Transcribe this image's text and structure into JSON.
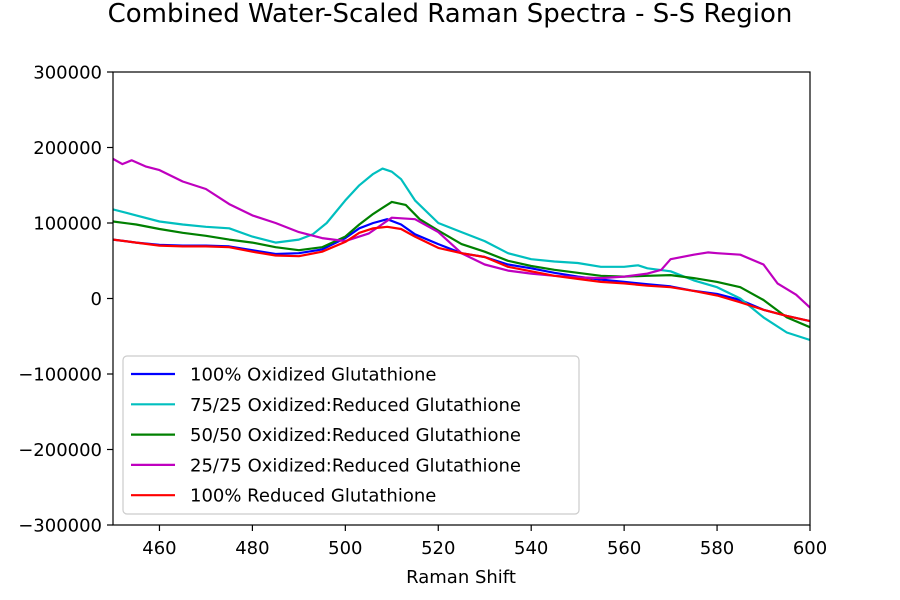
{
  "chart_data": {
    "type": "line",
    "title": "Combined Water-Scaled Raman Spectra - S-S Region",
    "xlabel": "Raman Shift",
    "ylabel": "",
    "xlim": [
      450,
      600
    ],
    "ylim": [
      -300000,
      300000
    ],
    "xticks": [
      460,
      480,
      500,
      520,
      540,
      560,
      580,
      600
    ],
    "yticks": [
      -300000,
      -200000,
      -100000,
      0,
      100000,
      200000,
      300000
    ],
    "ytick_labels": [
      "−300000",
      "−200000",
      "−100000",
      "0",
      "100000",
      "200000",
      "300000"
    ],
    "grid": false,
    "legend_position": "lower-left",
    "series": [
      {
        "name": "100% Oxidized Glutathione",
        "color": "#0000ff",
        "x": [
          450,
          455,
          460,
          465,
          470,
          475,
          480,
          485,
          490,
          495,
          500,
          503,
          506,
          509,
          512,
          515,
          520,
          525,
          530,
          535,
          540,
          545,
          550,
          555,
          560,
          565,
          570,
          575,
          580,
          585,
          590,
          595,
          600
        ],
        "y": [
          78000,
          74000,
          71000,
          70000,
          70000,
          69000,
          64000,
          59000,
          60000,
          65000,
          80000,
          93000,
          100000,
          105000,
          98000,
          85000,
          72000,
          60000,
          55000,
          45000,
          40000,
          34000,
          29000,
          25000,
          22000,
          19000,
          16000,
          10000,
          6000,
          -2000,
          -15000,
          -23000,
          -30000
        ]
      },
      {
        "name": "75/25 Oxidized:Reduced Glutathione",
        "color": "#00bfbf",
        "x": [
          450,
          455,
          460,
          465,
          470,
          475,
          480,
          485,
          490,
          493,
          496,
          500,
          503,
          506,
          508,
          510,
          512,
          515,
          520,
          525,
          530,
          535,
          540,
          545,
          550,
          555,
          560,
          563,
          565,
          570,
          575,
          580,
          585,
          590,
          595,
          600
        ],
        "y": [
          118000,
          110000,
          102000,
          98000,
          95000,
          93000,
          82000,
          74000,
          78000,
          85000,
          100000,
          130000,
          150000,
          165000,
          172000,
          168000,
          158000,
          130000,
          100000,
          88000,
          76000,
          60000,
          52000,
          49000,
          47000,
          42000,
          42000,
          44000,
          40000,
          36000,
          24000,
          15000,
          0,
          -25000,
          -45000,
          -55000
        ]
      },
      {
        "name": "50/50 Oxidized:Reduced Glutathione",
        "color": "#008000",
        "x": [
          450,
          455,
          460,
          465,
          470,
          475,
          480,
          485,
          490,
          495,
          500,
          503,
          506,
          510,
          513,
          516,
          520,
          525,
          530,
          535,
          540,
          545,
          550,
          555,
          560,
          565,
          570,
          575,
          580,
          585,
          590,
          595,
          600
        ],
        "y": [
          102000,
          98000,
          92000,
          87000,
          83000,
          78000,
          74000,
          68000,
          64000,
          68000,
          82000,
          98000,
          112000,
          128000,
          124000,
          105000,
          90000,
          72000,
          62000,
          50000,
          43000,
          38000,
          34000,
          30000,
          29000,
          30000,
          31000,
          27000,
          22000,
          15000,
          -2000,
          -25000,
          -38000
        ]
      },
      {
        "name": "25/75 Oxidized:Reduced Glutathione",
        "color": "#bf00bf",
        "x": [
          450,
          452,
          454,
          457,
          460,
          465,
          470,
          475,
          480,
          485,
          490,
          495,
          500,
          505,
          510,
          515,
          520,
          525,
          530,
          535,
          540,
          545,
          550,
          555,
          560,
          565,
          568,
          570,
          575,
          578,
          580,
          585,
          590,
          593,
          597,
          600
        ],
        "y": [
          185000,
          178000,
          183000,
          175000,
          170000,
          155000,
          145000,
          125000,
          110000,
          100000,
          88000,
          80000,
          76000,
          86000,
          107000,
          105000,
          88000,
          60000,
          45000,
          37000,
          33000,
          30000,
          28000,
          27000,
          29000,
          33000,
          38000,
          52000,
          58000,
          61000,
          60000,
          58000,
          45000,
          20000,
          5000,
          -12000
        ]
      },
      {
        "name": "100% Reduced Glutathione",
        "color": "#ff0000",
        "x": [
          450,
          455,
          460,
          465,
          470,
          475,
          480,
          485,
          490,
          495,
          500,
          503,
          506,
          509,
          512,
          515,
          520,
          525,
          530,
          535,
          540,
          545,
          550,
          555,
          560,
          565,
          570,
          575,
          580,
          585,
          590,
          595,
          600
        ],
        "y": [
          78000,
          74000,
          70000,
          69000,
          69000,
          68000,
          62000,
          57000,
          56000,
          62000,
          75000,
          87000,
          93000,
          95000,
          92000,
          82000,
          67000,
          60000,
          55000,
          42000,
          36000,
          30000,
          26000,
          22000,
          20000,
          17000,
          15000,
          10000,
          4000,
          -5000,
          -15000,
          -23000,
          -30000
        ]
      }
    ]
  }
}
